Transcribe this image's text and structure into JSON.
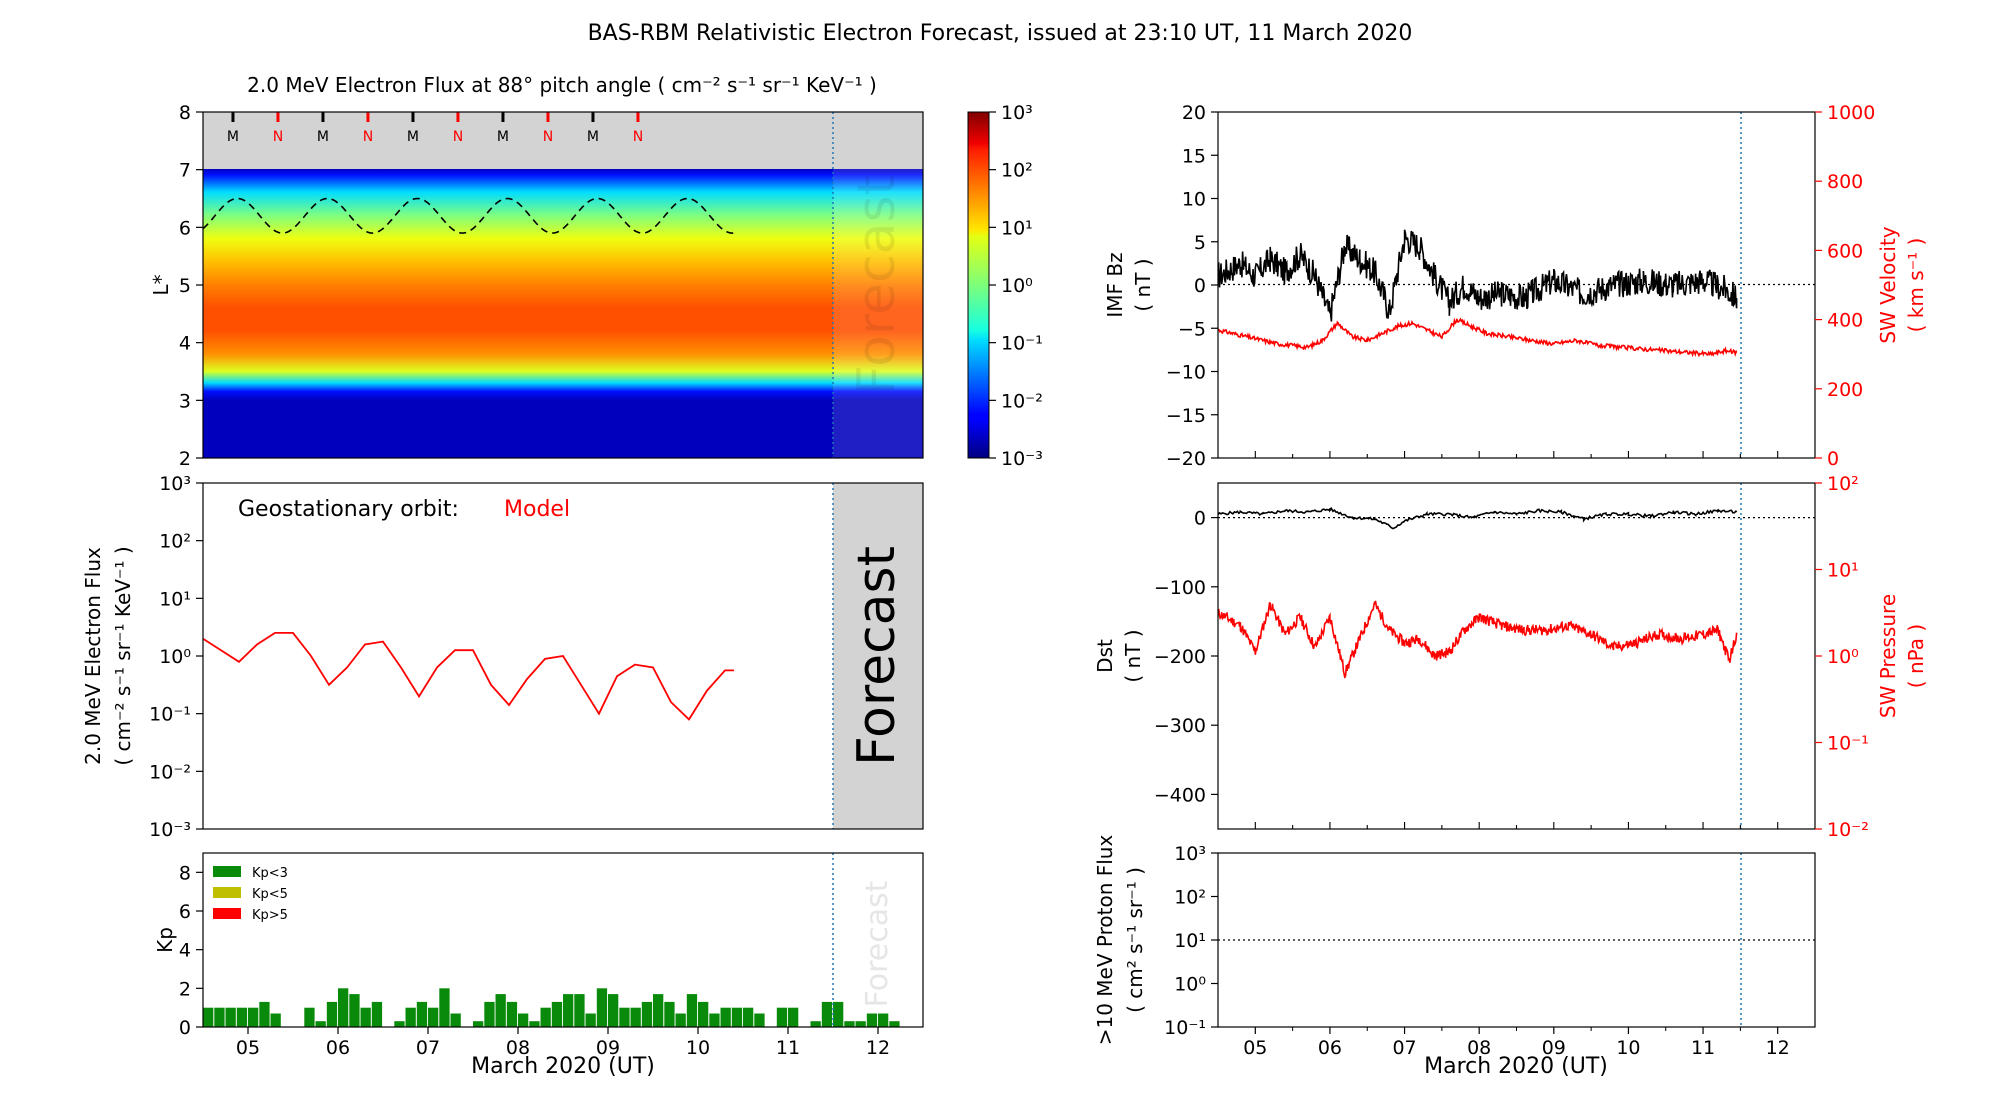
{
  "figure": {
    "title": "BAS-RBM Relativistic Electron Forecast, issued at 23:10 UT, 11 March 2020"
  },
  "colors": {
    "red": "#ff0000",
    "black": "#000000",
    "forecast_grey": "#d3d3d3",
    "bar_green": "#0a8a0a",
    "bar_yellow": "#bfbf00",
    "forecast_line": "#1f77b4"
  },
  "markers": {
    "midnight": "M",
    "noon": "N"
  },
  "forecast_label": "Forecast",
  "xlabel": "March 2020 (UT)",
  "x_ticks": [
    "05",
    "06",
    "07",
    "08",
    "09",
    "10",
    "11",
    "12"
  ],
  "chart_data": [
    {
      "id": "flux_map",
      "type": "heatmap",
      "title": "2.0 MeV Electron Flux at 88° pitch angle ( cm⁻² s⁻¹ sr⁻¹ KeV⁻¹ )",
      "ylabel": "L*",
      "ylim": [
        2,
        8
      ],
      "y_ticks": [
        "2",
        "3",
        "4",
        "5",
        "6",
        "7",
        "8"
      ],
      "colorbar_ticks": [
        "10³",
        "10²",
        "10¹",
        "10⁰",
        "10⁻¹",
        "10⁻²",
        "10⁻³"
      ],
      "colorbar_range_log10": [
        -3,
        3
      ],
      "flux_profile_log10": [
        {
          "L": 2.0,
          "v": -3
        },
        {
          "L": 3.0,
          "v": -3
        },
        {
          "L": 3.15,
          "v": -2.5
        },
        {
          "L": 3.3,
          "v": -1.2
        },
        {
          "L": 3.5,
          "v": 0.4
        },
        {
          "L": 3.8,
          "v": 1.3
        },
        {
          "L": 4.2,
          "v": 1.7
        },
        {
          "L": 4.6,
          "v": 1.7
        },
        {
          "L": 5.0,
          "v": 1.4
        },
        {
          "L": 5.4,
          "v": 1.0
        },
        {
          "L": 5.8,
          "v": 0.5
        },
        {
          "L": 6.2,
          "v": -0.2
        },
        {
          "L": 6.6,
          "v": -1.2
        },
        {
          "L": 6.9,
          "v": -2.5
        },
        {
          "L": 7.0,
          "v": -3
        }
      ],
      "boundary_L": 7.0,
      "dashed_L_cycles": 6,
      "dashed_L_range": [
        5.9,
        6.5
      ],
      "marker_sequence": [
        "M",
        "N",
        "M",
        "N",
        "M",
        "N",
        "M",
        "N",
        "M",
        "N"
      ],
      "marker_days": [
        4.833,
        5.333,
        5.833,
        6.333,
        6.833,
        7.333,
        7.833,
        8.333,
        8.833,
        9.333
      ]
    },
    {
      "id": "geo_flux",
      "type": "line",
      "annotation_label": "Geostationary orbit:",
      "annotation_value": "Model",
      "ylabel": "2.0 MeV Electron Flux",
      "ylabel2": "( cm⁻² s⁻¹ sr⁻¹ KeV⁻¹ )",
      "ylim_log10": [
        -3,
        3
      ],
      "y_ticks": [
        "10³",
        "10²",
        "10¹",
        "10⁰",
        "10⁻¹",
        "10⁻²",
        "10⁻³"
      ],
      "series": [
        {
          "x": [
            4.5,
            4.7,
            4.9,
            5.1,
            5.3,
            5.5,
            5.7,
            5.9,
            6.1,
            6.3,
            6.5,
            6.7,
            6.9,
            7.1,
            7.3,
            7.5,
            7.7,
            7.9,
            8.1,
            8.3,
            8.5,
            8.7,
            8.9,
            9.1,
            9.3,
            9.5,
            9.7,
            9.9,
            10.1,
            10.3,
            10.4
          ],
          "y_log10": [
            0.3,
            0.1,
            -0.1,
            0.2,
            0.4,
            0.4,
            0.0,
            -0.5,
            -0.2,
            0.2,
            0.25,
            -0.2,
            -0.7,
            -0.2,
            0.1,
            0.1,
            -0.5,
            -0.85,
            -0.4,
            -0.05,
            0.0,
            -0.5,
            -1.0,
            -0.35,
            -0.15,
            -0.2,
            -0.8,
            -1.1,
            -0.6,
            -0.25,
            -0.25
          ]
        }
      ]
    },
    {
      "id": "kp",
      "type": "bar",
      "ylabel": "Kp",
      "ylim": [
        0,
        9
      ],
      "y_ticks": [
        "0",
        "2",
        "4",
        "6",
        "8"
      ],
      "legend": [
        {
          "label": "Kp<3",
          "color": "#0a8a0a"
        },
        {
          "label": "Kp<5",
          "color": "#bfbf00"
        },
        {
          "label": "Kp>5",
          "color": "#ff0000"
        }
      ],
      "bar_width_days": 0.125,
      "start_day": 4.5,
      "values": [
        1.0,
        1.0,
        1.0,
        1.0,
        1.0,
        1.3,
        0.7,
        0.0,
        0.0,
        1.0,
        0.3,
        1.3,
        2.0,
        1.7,
        1.0,
        1.3,
        0.0,
        0.3,
        1.0,
        1.3,
        1.0,
        2.0,
        0.7,
        0.0,
        0.3,
        1.3,
        1.7,
        1.3,
        0.7,
        0.3,
        1.0,
        1.3,
        1.7,
        1.7,
        0.7,
        2.0,
        1.7,
        1.0,
        1.0,
        1.3,
        1.7,
        1.3,
        0.7,
        1.7,
        1.3,
        0.7,
        1.0,
        1.0,
        1.0,
        0.7,
        0.0,
        1.0,
        1.0,
        0.0,
        0.3,
        1.3,
        1.3,
        0.3,
        0.3,
        0.7,
        0.7,
        0.3
      ]
    },
    {
      "id": "imf_sw",
      "type": "line",
      "ylabel": "IMF Bz",
      "ylabel_unit": "( nT )",
      "ylim": [
        -20,
        20
      ],
      "y_ticks": [
        "20",
        "15",
        "10",
        "5",
        "0",
        "−5",
        "−10",
        "−15",
        "−20"
      ],
      "ylabel_right": "SW Velocity",
      "ylabel_right_unit": "( km s⁻¹ )",
      "ylim_right": [
        0,
        1000
      ],
      "y_ticks_right": [
        "1000",
        "800",
        "600",
        "400",
        "200",
        "0"
      ],
      "series": [
        {
          "axis": "left",
          "x": [
            4.5,
            4.8,
            5.0,
            5.2,
            5.4,
            5.6,
            5.8,
            6.0,
            6.2,
            6.4,
            6.6,
            6.8,
            7.0,
            7.2,
            7.4,
            7.6,
            7.8,
            8.0,
            8.3,
            8.6,
            9.0,
            9.4,
            9.8,
            10.2,
            10.6,
            11.0,
            11.3,
            11.45
          ],
          "y": [
            1.0,
            2.5,
            1.0,
            3.0,
            1.5,
            3.5,
            1.0,
            -3.5,
            4.5,
            3.0,
            1.5,
            -3.0,
            5.5,
            4.5,
            1.0,
            -2.0,
            0.0,
            -1.5,
            -1.0,
            -1.5,
            0.5,
            -1.0,
            0.0,
            0.5,
            0.0,
            0.5,
            -0.5,
            -1.5
          ]
        },
        {
          "axis": "right",
          "x": [
            4.5,
            4.7,
            4.9,
            5.1,
            5.3,
            5.5,
            5.7,
            5.9,
            6.1,
            6.3,
            6.5,
            6.7,
            6.9,
            7.1,
            7.3,
            7.5,
            7.7,
            7.9,
            8.1,
            8.4,
            8.7,
            9.0,
            9.3,
            9.6,
            9.9,
            10.2,
            10.5,
            10.8,
            11.1,
            11.3,
            11.45
          ],
          "y": [
            370,
            360,
            350,
            340,
            330,
            325,
            320,
            340,
            390,
            350,
            340,
            360,
            380,
            390,
            370,
            350,
            400,
            380,
            360,
            350,
            340,
            330,
            340,
            325,
            320,
            315,
            310,
            305,
            300,
            310,
            305
          ]
        }
      ]
    },
    {
      "id": "dst_pressure",
      "type": "line",
      "ylabel": "Dst",
      "ylabel_unit": "( nT )",
      "ylim": [
        -450,
        50
      ],
      "y_ticks": [
        "0",
        "−100",
        "−200",
        "−300",
        "−400"
      ],
      "ylabel_right": "SW Pressure",
      "ylabel_right_unit": "( nPa )",
      "ylim_right_log10": [
        -2,
        2
      ],
      "y_ticks_right": [
        "10²",
        "10¹",
        "10⁰",
        "10⁻¹",
        "10⁻²"
      ],
      "series": [
        {
          "axis": "left",
          "x": [
            4.5,
            4.8,
            5.1,
            5.4,
            5.7,
            6.0,
            6.3,
            6.6,
            6.85,
            7.0,
            7.3,
            7.6,
            7.9,
            8.2,
            8.5,
            8.8,
            9.1,
            9.4,
            9.7,
            10.0,
            10.3,
            10.6,
            10.9,
            11.2,
            11.45
          ],
          "y": [
            5,
            8,
            5,
            10,
            8,
            12,
            0,
            -2,
            -15,
            -5,
            5,
            5,
            0,
            8,
            5,
            10,
            8,
            -2,
            5,
            5,
            2,
            8,
            5,
            10,
            8
          ]
        },
        {
          "axis": "right",
          "x": [
            4.5,
            4.8,
            5.0,
            5.2,
            5.4,
            5.6,
            5.8,
            6.0,
            6.2,
            6.4,
            6.6,
            6.8,
            7.0,
            7.2,
            7.4,
            7.6,
            7.8,
            8.0,
            8.3,
            8.6,
            8.9,
            9.2,
            9.5,
            9.8,
            10.1,
            10.4,
            10.7,
            11.0,
            11.2,
            11.35,
            11.45
          ],
          "y_log10": [
            0.5,
            0.35,
            0.05,
            0.6,
            0.25,
            0.45,
            0.1,
            0.45,
            -0.2,
            0.2,
            0.6,
            0.3,
            0.15,
            0.2,
            0.0,
            0.05,
            0.3,
            0.45,
            0.35,
            0.3,
            0.3,
            0.35,
            0.25,
            0.1,
            0.15,
            0.25,
            0.2,
            0.25,
            0.3,
            -0.05,
            0.25
          ]
        }
      ]
    },
    {
      "id": "proton_flux",
      "type": "line",
      "ylabel": ">10 MeV Proton Flux",
      "ylabel_unit": "( cm² s⁻¹ sr⁻¹ )",
      "ylim_log10": [
        -1,
        3
      ],
      "y_ticks": [
        "10³",
        "10²",
        "10¹",
        "10⁰",
        "10⁻¹"
      ],
      "threshold_log10": 1,
      "series": []
    }
  ]
}
